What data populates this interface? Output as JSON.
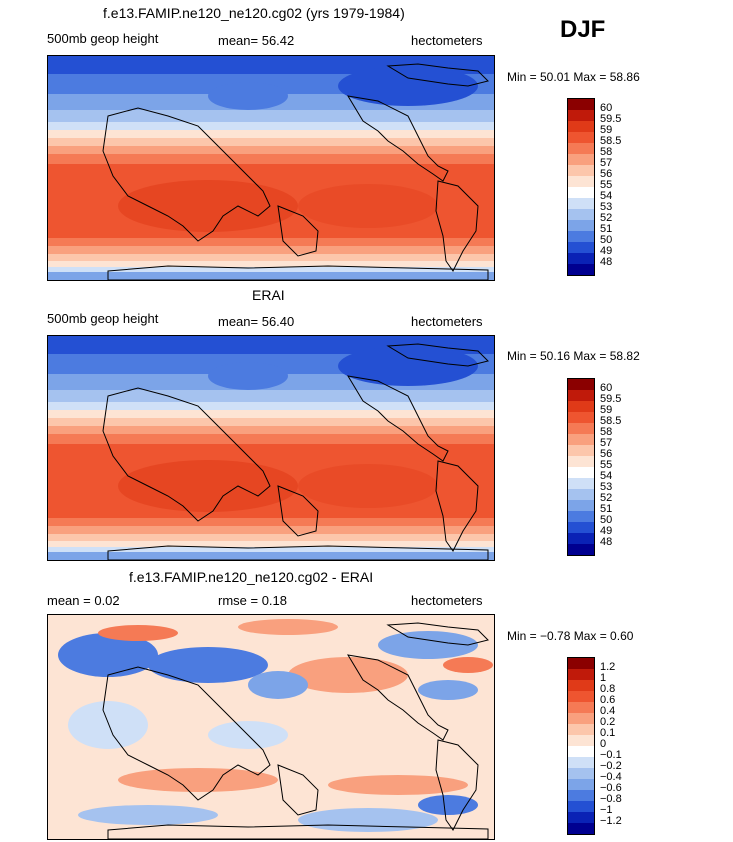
{
  "season": "DJF",
  "panels": [
    {
      "title": "f.e13.FAMIP.ne120_ne120.cg02 (yrs 1979-1984)",
      "left_label": "500mb geop height",
      "mid_label": "mean=  56.42",
      "right_label": "hectometers",
      "minmax": "Min =  50.01  Max =  58.86",
      "colorbar_ticks": [
        "60",
        "59.5",
        "59",
        "58.5",
        "58",
        "57",
        "56",
        "55",
        "54",
        "53",
        "52",
        "51",
        "50",
        "49",
        "48"
      ],
      "colorbar_colors": [
        "#8b0000",
        "#c01a0a",
        "#e03a18",
        "#ee5530",
        "#f57a55",
        "#f9a07e",
        "#fcc6ab",
        "#fde4d4",
        "#ffffff",
        "#cfe0f7",
        "#a5c2ef",
        "#7ca4e8",
        "#4c7be0",
        "#2450d3",
        "#0a22b5",
        "#000090"
      ],
      "field": "height"
    },
    {
      "title": "ERAI",
      "left_label": "500mb geop height",
      "mid_label": "mean=  56.40",
      "right_label": "hectometers",
      "minmax": "Min =  50.16  Max =  58.82",
      "colorbar_ticks": [
        "60",
        "59.5",
        "59",
        "58.5",
        "58",
        "57",
        "56",
        "55",
        "54",
        "53",
        "52",
        "51",
        "50",
        "49",
        "48"
      ],
      "colorbar_colors": [
        "#8b0000",
        "#c01a0a",
        "#e03a18",
        "#ee5530",
        "#f57a55",
        "#f9a07e",
        "#fcc6ab",
        "#fde4d4",
        "#ffffff",
        "#cfe0f7",
        "#a5c2ef",
        "#7ca4e8",
        "#4c7be0",
        "#2450d3",
        "#0a22b5",
        "#000090"
      ],
      "field": "height"
    },
    {
      "title": "f.e13.FAMIP.ne120_ne120.cg02 - ERAI",
      "left_label": "mean =    0.02",
      "mid_label": "rmse =    0.18",
      "right_label": "hectometers",
      "minmax": "Min =  −0.78  Max =    0.60",
      "colorbar_ticks": [
        "1.2",
        "1",
        "0.8",
        "0.6",
        "0.4",
        "0.2",
        "0.1",
        "0",
        "−0.1",
        "−0.2",
        "−0.4",
        "−0.6",
        "−0.8",
        "−1",
        "−1.2"
      ],
      "colorbar_colors": [
        "#8b0000",
        "#c01a0a",
        "#e03a18",
        "#ee5530",
        "#f57a55",
        "#f9a07e",
        "#fcc6ab",
        "#fde4d4",
        "#ffffff",
        "#cfe0f7",
        "#a5c2ef",
        "#7ca4e8",
        "#4c7be0",
        "#2450d3",
        "#0a22b5",
        "#000090"
      ],
      "field": "diff"
    }
  ],
  "chart_data": [
    {
      "type": "heatmap",
      "title": "f.e13.FAMIP.ne120_ne120.cg02 (yrs 1979-1984)",
      "variable": "500mb geop height",
      "units": "hectometers",
      "mean": 56.42,
      "min": 50.01,
      "max": 58.86,
      "levels": [
        48,
        49,
        50,
        51,
        52,
        53,
        54,
        55,
        56,
        57,
        58,
        58.5,
        59,
        59.5,
        60
      ]
    },
    {
      "type": "heatmap",
      "title": "ERAI",
      "variable": "500mb geop height",
      "units": "hectometers",
      "mean": 56.4,
      "min": 50.16,
      "max": 58.82,
      "levels": [
        48,
        49,
        50,
        51,
        52,
        53,
        54,
        55,
        56,
        57,
        58,
        58.5,
        59,
        59.5,
        60
      ]
    },
    {
      "type": "heatmap",
      "title": "f.e13.FAMIP.ne120_ne120.cg02 - ERAI",
      "units": "hectometers",
      "mean": 0.02,
      "rmse": 0.18,
      "min": -0.78,
      "max": 0.6,
      "levels": [
        -1.2,
        -1,
        -0.8,
        -0.6,
        -0.4,
        -0.2,
        -0.1,
        0,
        0.1,
        0.2,
        0.4,
        0.6,
        0.8,
        1,
        1.2
      ]
    }
  ]
}
